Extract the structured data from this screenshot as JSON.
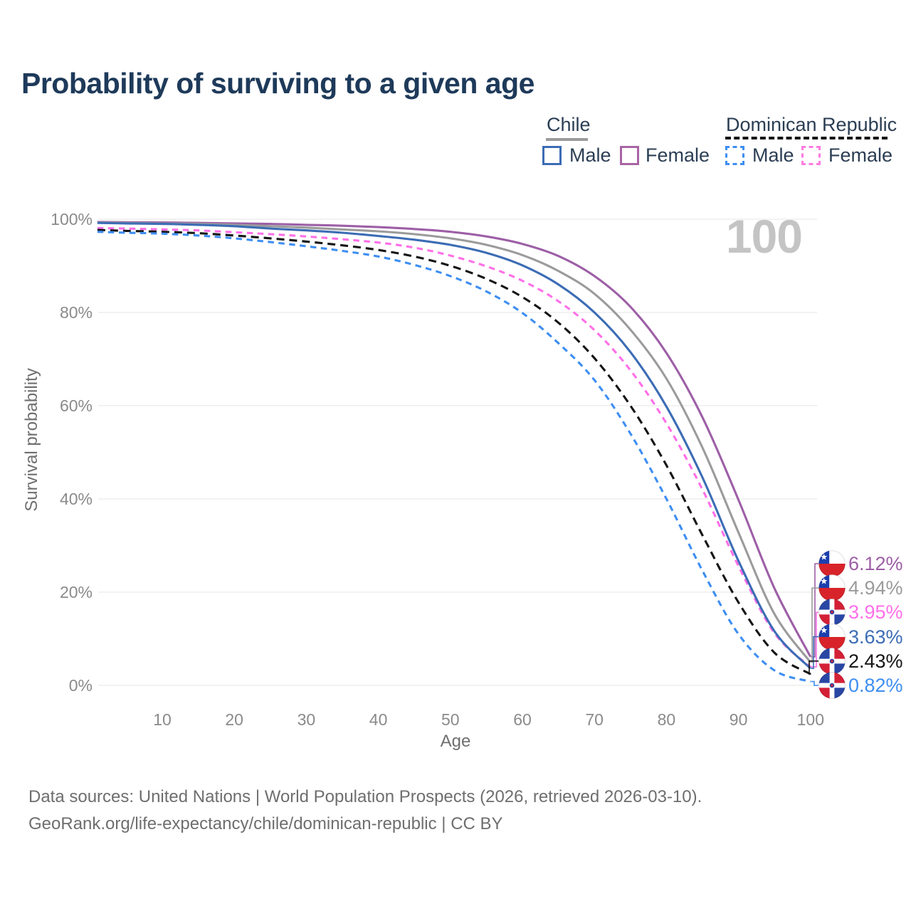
{
  "title": "Probability of surviving to a given age",
  "watermark": "100",
  "legend": {
    "chile": {
      "label": "Chile",
      "male": "Male",
      "female": "Female"
    },
    "dr": {
      "label": "Dominican Republic",
      "male": "Male",
      "female": "Female"
    }
  },
  "axes": {
    "y_label": "Survival probability",
    "x_label": "Age",
    "y_ticks": [
      "100%",
      "80%",
      "60%",
      "40%",
      "20%",
      "0%"
    ],
    "x_ticks": [
      "10",
      "20",
      "30",
      "40",
      "50",
      "60",
      "70",
      "80",
      "90",
      "100"
    ]
  },
  "footer": {
    "line1": "Data sources: United Nations | World Population Prospects (2026, retrieved 2026-03-10).",
    "line2": "GeoRank.org/life-expectancy/chile/dominican-republic | CC BY"
  },
  "colors": {
    "title_text": "#1e3a5a",
    "legend_text": "#2b3e54",
    "axis_text": "#8a8a8a",
    "gridline": "#ebebeb",
    "watermark": "#c4c4c4",
    "chile_line_swatch": "#9b9b9b",
    "dr_line_swatch": "#151515"
  },
  "chart_data": {
    "type": "line",
    "title": "Probability of surviving to a given age",
    "xlabel": "Age",
    "ylabel": "Survival probability",
    "xlim": [
      1,
      100
    ],
    "ylim_percent": [
      0,
      100
    ],
    "grid": "horizontal-only",
    "legend_position": "top-right",
    "y_ticks_percent": [
      100,
      80,
      60,
      40,
      20,
      0
    ],
    "x_ticks_age": [
      10,
      20,
      30,
      40,
      50,
      60,
      70,
      80,
      90,
      100
    ],
    "x": [
      1,
      5,
      10,
      15,
      20,
      25,
      30,
      35,
      40,
      45,
      50,
      55,
      60,
      65,
      70,
      75,
      80,
      85,
      90,
      95,
      100
    ],
    "series": [
      {
        "name": "Chile — Female",
        "country": "chile",
        "sex": "female",
        "line_style": "solid",
        "color": "#9d5fa6",
        "end_label": "6.12%",
        "values": [
          99.4,
          99.35,
          99.3,
          99.2,
          99.1,
          99.0,
          98.8,
          98.6,
          98.3,
          97.9,
          97.3,
          96.3,
          94.7,
          92.1,
          87.8,
          81.2,
          71.3,
          57.5,
          39.8,
          20.8,
          6.12
        ]
      },
      {
        "name": "Chile — Both sexes",
        "country": "chile",
        "sex": "both",
        "line_style": "solid",
        "color": "#9b9b9b",
        "end_label": "4.94%",
        "values": [
          99.3,
          99.2,
          99.1,
          99.0,
          98.8,
          98.5,
          98.2,
          97.8,
          97.4,
          96.8,
          95.9,
          94.5,
          92.3,
          88.9,
          84.0,
          76.3,
          65.8,
          51.0,
          32.8,
          15.3,
          4.94
        ]
      },
      {
        "name": "Chile — Male",
        "country": "chile",
        "sex": "male",
        "line_style": "solid",
        "color": "#3c6cb5",
        "end_label": "3.63%",
        "values": [
          99.2,
          99.1,
          99.0,
          98.8,
          98.5,
          98.0,
          97.6,
          97.1,
          96.4,
          95.6,
          94.5,
          92.8,
          90.1,
          86.0,
          80.0,
          71.5,
          59.8,
          44.6,
          26.7,
          11.6,
          3.63
        ]
      },
      {
        "name": "Dominican Republic — Female",
        "country": "dr",
        "sex": "female",
        "line_style": "dashed",
        "color": "#ff6fe8",
        "end_label": "3.95%",
        "values": [
          98.1,
          98.0,
          97.8,
          97.6,
          97.2,
          96.8,
          96.3,
          95.7,
          95.0,
          93.9,
          92.2,
          89.9,
          86.8,
          82.4,
          76.2,
          67.6,
          56.2,
          42.0,
          25.6,
          11.2,
          3.95
        ]
      },
      {
        "name": "Dominican Republic — Both sexes",
        "country": "dr",
        "sex": "both",
        "line_style": "dashed",
        "color": "#151515",
        "end_label": "2.43%",
        "values": [
          97.7,
          97.5,
          97.3,
          97.0,
          96.5,
          95.9,
          95.2,
          94.4,
          93.4,
          92.0,
          90.0,
          87.2,
          83.3,
          77.8,
          70.2,
          60.0,
          47.2,
          32.2,
          17.8,
          7.0,
          2.43
        ]
      },
      {
        "name": "Dominican Republic — Male",
        "country": "dr",
        "sex": "male",
        "line_style": "dashed",
        "color": "#3e8ef2",
        "end_label": "0.82%",
        "values": [
          97.3,
          97.1,
          96.9,
          96.5,
          95.9,
          95.1,
          94.2,
          93.2,
          92.0,
          90.2,
          87.8,
          84.5,
          79.9,
          73.4,
          65.5,
          54.0,
          40.0,
          24.6,
          11.0,
          3.2,
          0.82
        ]
      }
    ]
  }
}
